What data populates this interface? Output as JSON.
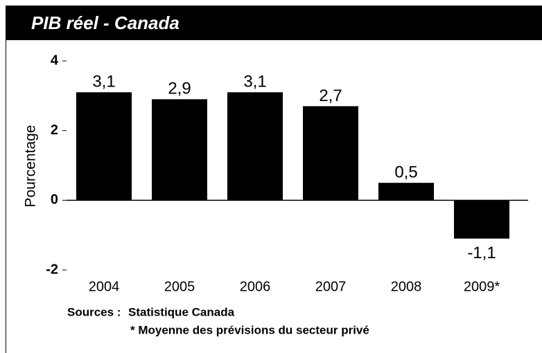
{
  "chart_data": {
    "type": "bar",
    "title": "PIB réel - Canada",
    "y_label": "Pourcentage",
    "categories": [
      "2004",
      "2005",
      "2006",
      "2007",
      "2008",
      "2009*"
    ],
    "values": [
      3.1,
      2.9,
      3.1,
      2.7,
      0.5,
      -1.1
    ],
    "value_labels": [
      "3,1",
      "2,9",
      "3,1",
      "2,7",
      "0,5",
      "-1,1"
    ],
    "color": "#000000",
    "ylim": [
      -2,
      4
    ],
    "yticks": [
      -2,
      0,
      2,
      4
    ],
    "source_label": "Sources :",
    "source": "Statistique Canada",
    "footnote": "* Moyenne des prévisions du secteur privé"
  }
}
